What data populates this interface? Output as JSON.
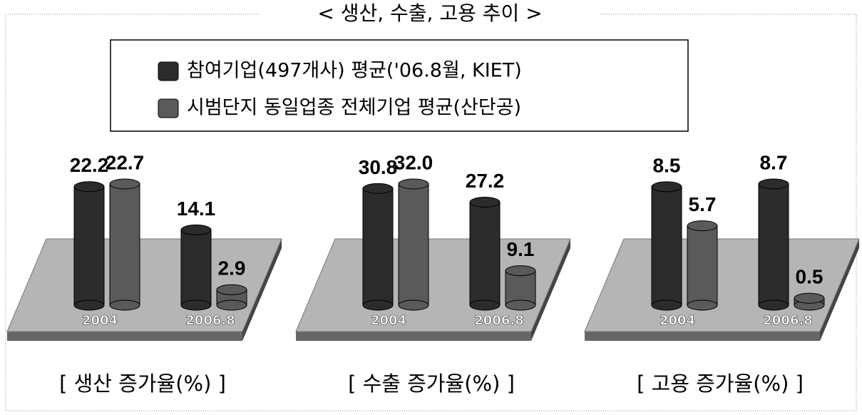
{
  "title": "< 생산, 수출, 고용 추이 >",
  "legend": [
    {
      "name": "참여기업(497개사) 평균('06.8월, KIET)",
      "color": "#2b2b2b"
    },
    {
      "name": "시범단지 동일업종 전체기업 평균(산단공)",
      "color": "#5a5a5a"
    }
  ],
  "chart_data": [
    {
      "type": "bar",
      "title": "[ 생산 증가율(%) ]",
      "categories": [
        "2004",
        "2006.8"
      ],
      "series": [
        {
          "values": [
            22.2,
            14.1
          ]
        },
        {
          "values": [
            22.7,
            2.9
          ]
        }
      ]
    },
    {
      "type": "bar",
      "title": "[ 수출 증가율(%) ]",
      "categories": [
        "2004",
        "2006.8"
      ],
      "series": [
        {
          "values": [
            30.8,
            27.2
          ]
        },
        {
          "values": [
            32.0,
            9.1
          ],
          "value_labels": [
            "32.0",
            "9.1"
          ]
        }
      ]
    },
    {
      "type": "bar",
      "title": "[ 고용 증가율(%) ]",
      "categories": [
        "2004",
        "2006.8"
      ],
      "series": [
        {
          "values": [
            8.5,
            8.7
          ]
        },
        {
          "values": [
            5.7,
            0.5
          ]
        }
      ]
    }
  ]
}
